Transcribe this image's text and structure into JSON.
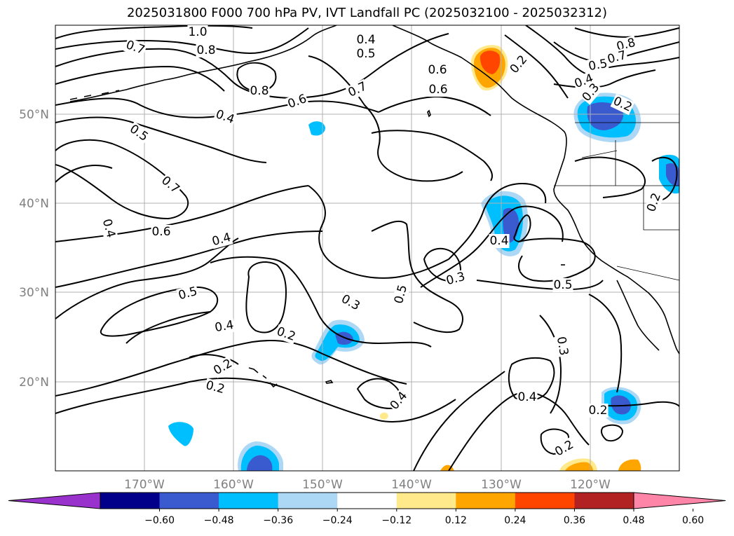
{
  "title": "2025031800 F000 700 hPa PV, IVT Landfall PC (2025032100 - 2025032312)",
  "lat_ticks": [
    "50°N",
    "40°N",
    "30°N",
    "20°N"
  ],
  "lon_ticks": [
    "170°W",
    "160°W",
    "150°W",
    "140°W",
    "130°W",
    "120°W"
  ],
  "colorbar": {
    "ticks": [
      "−0.60",
      "−0.48",
      "−0.36",
      "−0.24",
      "−0.12",
      "0.12",
      "0.24",
      "0.36",
      "0.48",
      "0.60"
    ],
    "colors": [
      "#9932cc",
      "#00008b",
      "#3a5bcf",
      "#00bfff",
      "#add8f5",
      "#ffffff",
      "#ffe98a",
      "#ffa500",
      "#ff4500",
      "#b22222",
      "#ff85a8"
    ]
  },
  "contour_labels": [
    "1.0",
    "0.8",
    "0.7",
    "0.4",
    "0.5",
    "0.7",
    "0.6",
    "0.2",
    "0.8",
    "0.6",
    "0.8",
    "0.7",
    "0.5",
    "0.6",
    "0.4",
    "0.3",
    "0.2",
    "0.5",
    "0.4",
    "0.7",
    "0.6",
    "0.4",
    "0.4",
    "0.5",
    "0.3",
    "0.3",
    "0.5",
    "0.5",
    "0.4",
    "0.2",
    "0.2",
    "0.2",
    "0.4",
    "0.3",
    "0.4",
    "0.2",
    "0.2",
    "0.2",
    "0.4"
  ],
  "colors": {
    "land": "#000000",
    "grid": "#b0b0b0",
    "contour": "#000000"
  }
}
